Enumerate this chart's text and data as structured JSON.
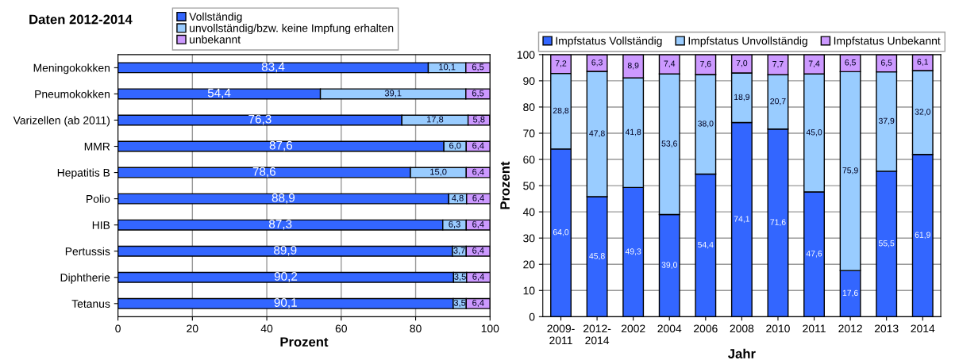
{
  "chart_data": [
    {
      "type": "bar",
      "orientation": "horizontal",
      "stacked": true,
      "title": "Daten 2012-2014",
      "xlabel": "Prozent",
      "categories": [
        "Meningokokken",
        "Pneumokokken",
        "Varizellen (ab 2011)",
        "MMR",
        "Hepatitis B",
        "Polio",
        "HIB",
        "Pertussis",
        "Diphtherie",
        "Tetanus"
      ],
      "series": [
        {
          "name": "Vollständig",
          "color": "#3366ff",
          "values": [
            83.4,
            54.4,
            76.3,
            87.6,
            78.6,
            88.9,
            87.3,
            89.9,
            90.2,
            90.1
          ],
          "value_labels": [
            "83,4",
            "54,4",
            "76,3",
            "87,6",
            "78,6",
            "88,9",
            "87,3",
            "89,9",
            "90,2",
            "90,1"
          ]
        },
        {
          "name": "unvollständig/bzw. keine Impfung erhalten",
          "color": "#99ccff",
          "values": [
            10.1,
            39.1,
            17.8,
            6.0,
            15.0,
            4.8,
            6.3,
            3.7,
            3.5,
            3.5
          ],
          "value_labels": [
            "10,1",
            "39,1",
            "17,8",
            "6,0",
            "15,0",
            "4,8",
            "6,3",
            "3,7",
            "3,5",
            "3,5"
          ]
        },
        {
          "name": "unbekannt",
          "color": "#cc99ff",
          "values": [
            6.5,
            6.5,
            5.8,
            6.4,
            6.4,
            6.4,
            6.4,
            6.4,
            6.4,
            6.4
          ],
          "value_labels": [
            "6,5",
            "6,5",
            "5,8",
            "6,4",
            "6,4",
            "6,4",
            "6,4",
            "6,4",
            "6,4",
            "6,4"
          ]
        }
      ],
      "xlim": [
        0,
        100
      ],
      "xticks": [
        0,
        20,
        40,
        60,
        80,
        100
      ],
      "grid": "x",
      "legend": "top"
    },
    {
      "type": "bar",
      "stacked": true,
      "xlabel": "Jahr",
      "ylabel": "Prozent",
      "categories": [
        "2009-\n2011",
        "2012-\n2014",
        "2002",
        "2004",
        "2006",
        "2008",
        "2010",
        "2011",
        "2012",
        "2013",
        "2014"
      ],
      "series": [
        {
          "name": "Impfstatus Vollständig",
          "color": "#3366ff",
          "values": [
            64.0,
            45.8,
            49.3,
            39.0,
            54.4,
            74.1,
            71.6,
            47.6,
            17.6,
            55.5,
            61.9
          ],
          "value_labels": [
            "64,0",
            "45,8",
            "49,3",
            "39,0",
            "54,4",
            "74,1",
            "71,6",
            "47,6",
            "17,6",
            "55,5",
            "61,9"
          ]
        },
        {
          "name": "Impfstatus Unvollständig",
          "color": "#99ccff",
          "values": [
            28.8,
            47.8,
            41.8,
            53.6,
            38.0,
            18.9,
            20.7,
            45.0,
            75.9,
            37.9,
            32.0
          ],
          "value_labels": [
            "28,8",
            "47,8",
            "41,8",
            "53,6",
            "38,0",
            "18,9",
            "20,7",
            "45,0",
            "75,9",
            "37,9",
            "32,0"
          ]
        },
        {
          "name": "Impfstatus Unbekannt",
          "color": "#cc99ff",
          "values": [
            7.2,
            6.3,
            8.9,
            7.4,
            7.6,
            7.0,
            7.7,
            7.4,
            6.5,
            6.5,
            6.1
          ],
          "value_labels": [
            "7,2",
            "6,3",
            "8,9",
            "7,4",
            "7,6",
            "7,0",
            "7,7",
            "7,4",
            "6,5",
            "6,5",
            "6,1"
          ]
        }
      ],
      "ylim": [
        0,
        100
      ],
      "yticks": [
        0,
        10,
        20,
        30,
        40,
        50,
        60,
        70,
        80,
        90,
        100
      ],
      "grid": "y",
      "legend": "top"
    }
  ]
}
